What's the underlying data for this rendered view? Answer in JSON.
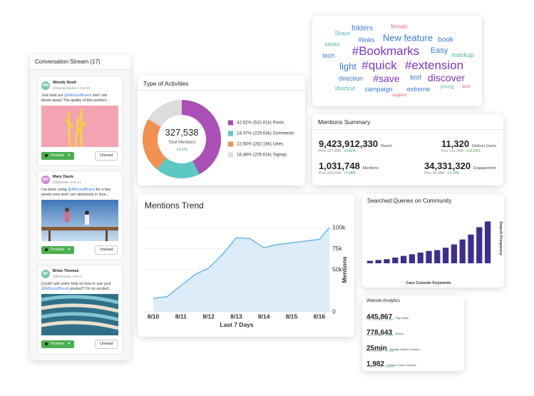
{
  "conversation_stream": {
    "title": "Conversation Stream (17)",
    "posts": [
      {
        "initials": "WN",
        "name": "Wendy Noell",
        "meta": "@WendyNoell23 • Feb 28",
        "text": [
          "Just tried out ",
          "@AllGoodBrand",
          " and I am blown away! The quality of this product..."
        ],
        "sentiment": "Positive",
        "action": "Unread"
      },
      {
        "initials": "MD",
        "name": "Mary Davis",
        "meta": "@MD1995 • Feb 21",
        "text": [
          "I've been using ",
          "@AllGoodBrand",
          " for a few weeks now and I am absolutely in love..."
        ],
        "sentiment": "Positive",
        "action": "Unread"
      },
      {
        "initials": "BT",
        "name": "Brian Thomas",
        "meta": "@BrThomas • Feb 3",
        "text": [
          "Could I get some help on how to use your ",
          "@AllGoodBrand",
          " product? I'm so excited..."
        ],
        "sentiment": "Positive",
        "action": "Unread"
      }
    ]
  },
  "word_cloud": {
    "words": [
      "folders",
      "formats",
      "Share",
      "#links",
      "New feature",
      "book",
      "saves",
      "#Bookmarks",
      "Easy",
      "tech",
      "mockup",
      "light",
      "#quick",
      "#extension",
      "direction",
      "#save",
      "text",
      "discover",
      "shortcut",
      "campaign",
      "extreme",
      "young",
      "tech",
      "support"
    ]
  },
  "mentions_summary": {
    "title": "Mentions Summary",
    "metrics": [
      {
        "value": "9,423,912,330",
        "label": "Reach",
        "prev": "Prev 107.69M",
        "change": "+9.82%"
      },
      {
        "value": "11,320",
        "label": "Distinct Users",
        "prev": "Prev 211.34M",
        "change": "+10.23%"
      },
      {
        "value": "1,031,748",
        "label": "Mentions",
        "prev": "Prev 154.01M",
        "change": "+7.44%"
      },
      {
        "value": "34,331,320",
        "label": "Engagement",
        "prev": "Prev 99.36M",
        "change": "+2.19%"
      }
    ]
  },
  "website_analytics": {
    "title": "Website Analytics",
    "metrics": [
      {
        "value": "445,867",
        "label": "Page Views",
        "prev": "Prev 165.34M",
        "change": "+3.28%"
      },
      {
        "value": "778,643",
        "label": "Visitors",
        "prev": "Prev 165.34M",
        "change": "+6.43%"
      },
      {
        "value": "25min",
        "label": "Average Session Duration",
        "prev": "Prev 165.34M",
        "change": "+8.76%"
      },
      {
        "value": "1,982",
        "label": "Number of User Sessions",
        "prev": "Prev 165.34M",
        "change": "+3.23%"
      }
    ]
  },
  "chart_data": [
    {
      "type": "pie",
      "donut": true,
      "title": "Type of Activities",
      "center_value": "327,538",
      "center_label": "Total Mentions",
      "center_change": "+3.1%",
      "categories": [
        "42.62% (532.81k) Posts",
        "18.37% (229.63k) Comments",
        "22.55% (282.18k) Likes",
        "16.46% (205.61k) Signup"
      ],
      "values": [
        42.62,
        18.37,
        22.55,
        16.46
      ],
      "colors": [
        "#a94fb5",
        "#5cc8c4",
        "#f39150",
        "#dddddd"
      ]
    },
    {
      "type": "line",
      "title": "Mentions Trend",
      "categories": [
        "8/10",
        null,
        "8/11",
        null,
        "8/12",
        null,
        "8/13",
        null,
        "8/14",
        null,
        "8/15",
        null,
        "8/16",
        null
      ],
      "values": [
        16000,
        18000,
        31000,
        44000,
        52000,
        68000,
        88000,
        87000,
        76000,
        80000,
        82000,
        84000,
        86000,
        100000
      ],
      "color": "#6bb8e4",
      "fill": "#dcedf9",
      "xlabel": "Last 7 Days",
      "ylabel": "Mentions",
      "ylim": [
        0,
        100000
      ],
      "yticks": [
        0,
        {
          "value": 50000,
          "label": "50k"
        },
        {
          "value": 75000,
          "label": "75k"
        },
        {
          "value": 100000,
          "label": "100k"
        }
      ]
    },
    {
      "type": "bar",
      "title": "Searched Queries on Community",
      "categories": [
        null,
        null,
        null,
        null,
        null,
        null,
        null,
        null,
        null,
        null,
        null,
        null,
        null,
        null,
        null
      ],
      "values": [
        3,
        4,
        5,
        7,
        9,
        11,
        13,
        15,
        16,
        19,
        23,
        29,
        35,
        44,
        51
      ],
      "color": "#3d2e8f",
      "xlabel": "Care Console Keywords",
      "ylabel": "Search Frequency",
      "ylim": [
        0,
        60
      ]
    }
  ]
}
